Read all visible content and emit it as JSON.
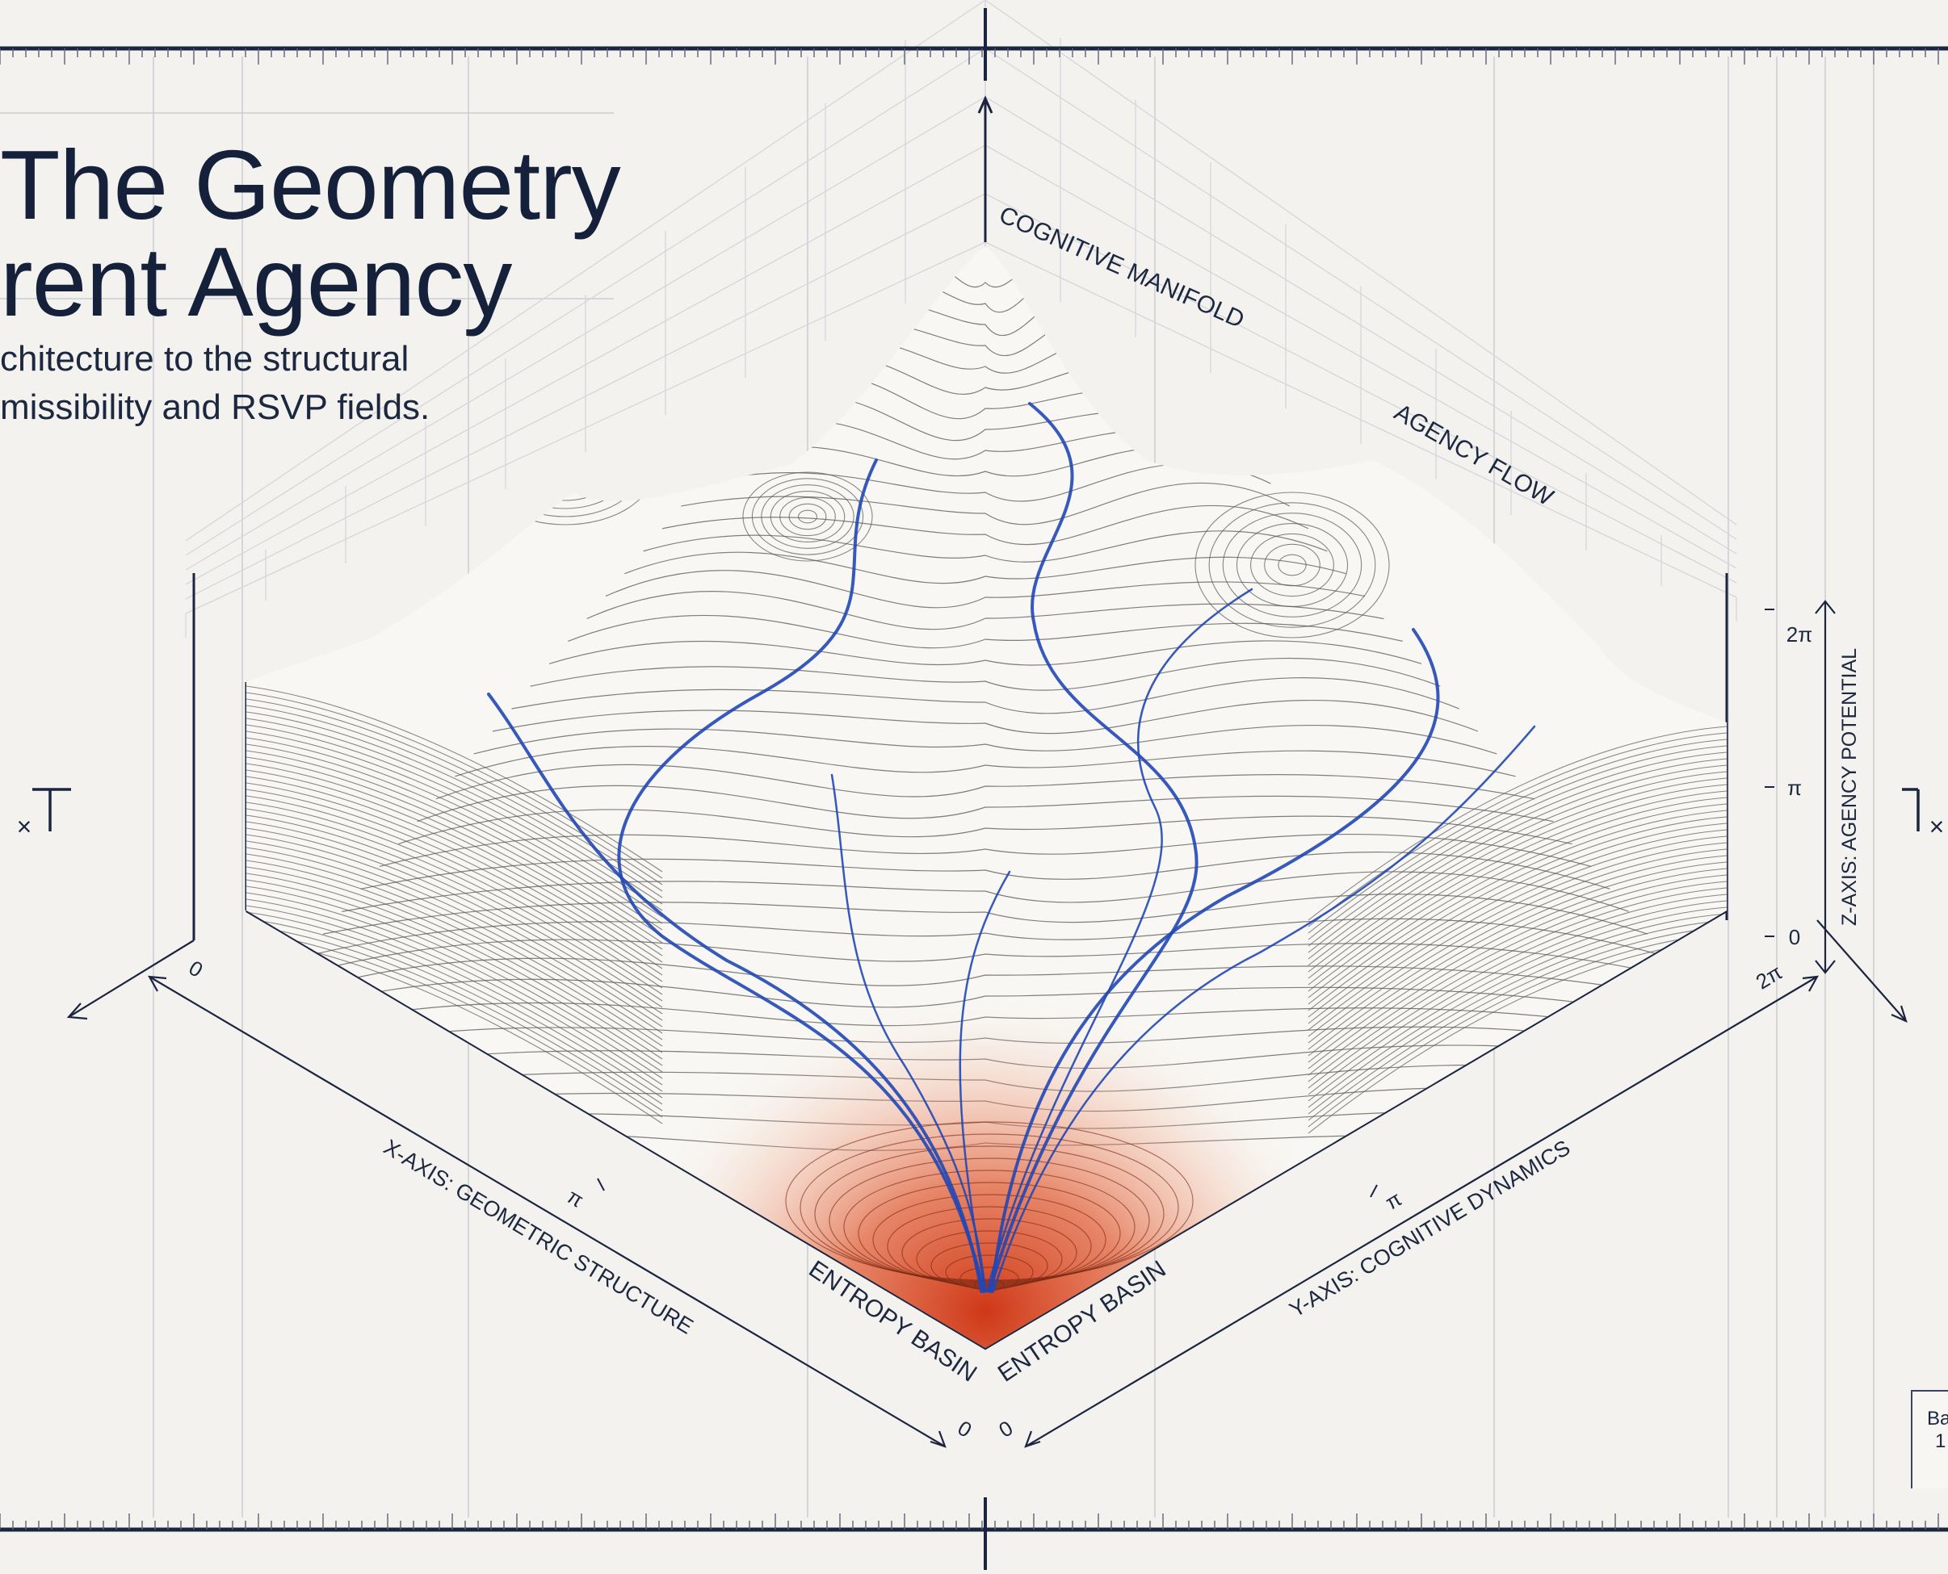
{
  "header": {
    "title_line_1": "The Geometry",
    "title_line_2": "rent Agency",
    "subtitle_line_1": "chitecture to the structural",
    "subtitle_line_2": "missibility and RSVP fields."
  },
  "diagram": {
    "labels": {
      "cognitive_manifold": "COGNITIVE MANIFOLD",
      "agency_flow": "AGENCY FLOW",
      "entropy_basin_left": "ENTROPY BASIN",
      "entropy_basin_right": "ENTROPY BASIN",
      "x_axis": "X-AXIS: GEOMETRIC STRUCTURE",
      "y_axis": "Y-AXIS: COGNITIVE DYNAMICS",
      "z_axis": "Z-AXIS: AGENCY POTENTIAL"
    },
    "ticks": {
      "x_start": "0",
      "x_mid": "π",
      "x_end": "0",
      "y_start": "0",
      "y_mid": "π",
      "y_end": "2π",
      "z_low": "0",
      "z_mid": "π",
      "z_high": "2π"
    },
    "edge_marks": {
      "left": "×",
      "right": "×"
    },
    "legend": {
      "line_1": "Ba",
      "line_2": "1"
    },
    "colors": {
      "background": "#f3f2ee",
      "frame": "#1b2440",
      "contour": "#555555",
      "flow": "#2147b5",
      "basin": "#d23a16",
      "grid": "#c9ccd3"
    }
  }
}
